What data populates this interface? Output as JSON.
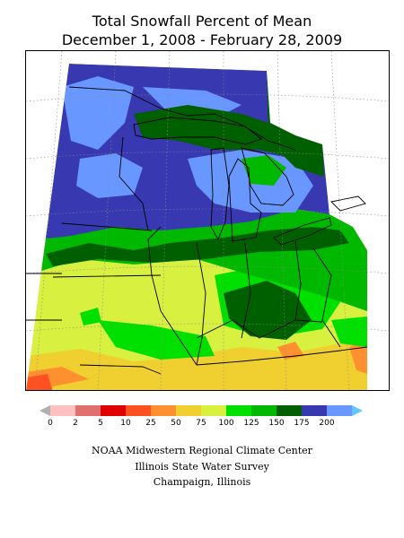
{
  "title": "Total Snowfall Percent of Mean",
  "subtitle": "December 1, 2008 - February 28, 2009",
  "legend": {
    "ticks": [
      "0",
      "2",
      "5",
      "10",
      "25",
      "50",
      "75",
      "100",
      "125",
      "150",
      "175",
      "200"
    ],
    "colors": [
      "#ffc0c0",
      "#e07070",
      "#e00000",
      "#ff5020",
      "#ff9030",
      "#f0d030",
      "#d8f040",
      "#00e000",
      "#00b800",
      "#006000",
      "#3838b0",
      "#6898ff"
    ],
    "low_arrow_color": "#b0b0b0",
    "high_arrow_color": "#60c8ff"
  },
  "credits": {
    "line1": "NOAA Midwestern Regional Climate Center",
    "line2": "Illinois State Water Survey",
    "line3": "Champaign, Illinois"
  },
  "colors": {
    "cat_175_200": "#6898ff",
    "cat_150_175": "#3838b0",
    "cat_125_150": "#006000",
    "cat_100_125": "#00b800",
    "cat_75_100": "#00e000",
    "cat_50_75": "#d8f040",
    "cat_25_50": "#f0d030",
    "cat_10_25": "#ff9030",
    "cat_5_10": "#ff5020"
  }
}
